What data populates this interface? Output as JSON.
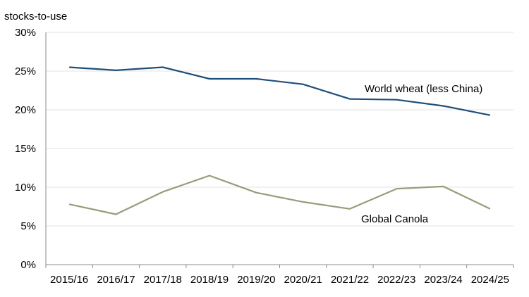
{
  "chart_data": {
    "type": "line",
    "ylabel": "stocks-to-use",
    "ylim": [
      0,
      30
    ],
    "y_ticks": [
      "0%",
      "5%",
      "10%",
      "15%",
      "20%",
      "25%",
      "30%"
    ],
    "y_tick_values": [
      0,
      5,
      10,
      15,
      20,
      25,
      30
    ],
    "categories": [
      "2015/16",
      "2016/17",
      "2017/18",
      "2018/19",
      "2019/20",
      "2020/21",
      "2021/22",
      "2022/23",
      "2023/24",
      "2024/25"
    ],
    "grid": true,
    "legend": "inline labels",
    "series": [
      {
        "name": "World wheat (less China)",
        "color": "#1f4e79",
        "values": [
          25.5,
          25.1,
          25.5,
          24.0,
          24.0,
          23.3,
          21.4,
          21.3,
          20.5,
          19.3
        ]
      },
      {
        "name": "Global Canola",
        "color": "#9a9b7a",
        "values": [
          7.8,
          6.5,
          9.4,
          11.5,
          9.3,
          8.1,
          7.2,
          9.8,
          10.1,
          7.2
        ]
      }
    ]
  }
}
